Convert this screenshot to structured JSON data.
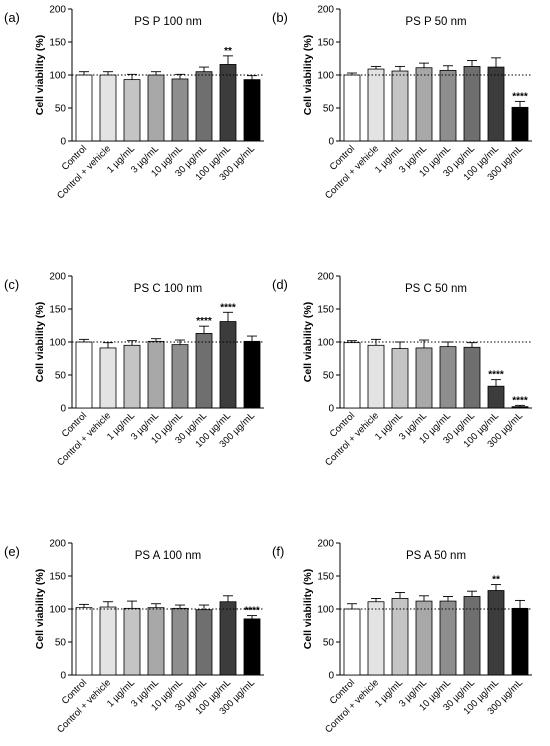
{
  "figure": {
    "categories": [
      "Control",
      "Control + vehicle",
      "1 µg/mL",
      "3 µg/mL",
      "10 µg/mL",
      "30 µg/mL",
      "100 µg/mL",
      "300 µg/mL"
    ],
    "bar_colors": [
      "#ffffff",
      "#e3e3e3",
      "#c4c4c4",
      "#a8a8a8",
      "#8e8e8e",
      "#6f6f6f",
      "#3c3c3c",
      "#000000"
    ],
    "reference_line": 100
  },
  "chart_data": [
    {
      "type": "bar",
      "panel_label": "(a)",
      "title": "PS P 100 nm",
      "ylabel": "Cell viability (%)",
      "ylim": [
        0,
        200
      ],
      "yticks": [
        0,
        50,
        100,
        150,
        200
      ],
      "categories": [
        "Control",
        "Control + vehicle",
        "1 µg/mL",
        "3 µg/mL",
        "10 µg/mL",
        "30 µg/mL",
        "100 µg/mL",
        "300 µg/mL"
      ],
      "values": [
        100,
        100,
        93,
        100,
        94,
        105,
        116,
        93
      ],
      "errors": [
        5,
        5,
        8,
        5,
        7,
        7,
        13,
        6
      ],
      "annotations": [
        "",
        "",
        "",
        "",
        "",
        "",
        "**",
        ""
      ]
    },
    {
      "type": "bar",
      "panel_label": "(b)",
      "title": "PS P 50 nm",
      "ylabel": "Cell viability (%)",
      "ylim": [
        0,
        200
      ],
      "yticks": [
        0,
        50,
        100,
        150,
        200
      ],
      "categories": [
        "Control",
        "Control + vehicle",
        "1 µg/mL",
        "3 µg/mL",
        "10 µg/mL",
        "30 µg/mL",
        "100 µg/mL",
        "300 µg/mL"
      ],
      "values": [
        100,
        109,
        106,
        111,
        107,
        113,
        112,
        51
      ],
      "errors": [
        3,
        4,
        7,
        7,
        7,
        9,
        14,
        9
      ],
      "annotations": [
        "",
        "",
        "",
        "",
        "",
        "",
        "",
        "****"
      ]
    },
    {
      "type": "bar",
      "panel_label": "(c)",
      "title": "PS C 100 nm",
      "ylabel": "Cell viability (%)",
      "ylim": [
        0,
        200
      ],
      "yticks": [
        0,
        50,
        100,
        150,
        200
      ],
      "categories": [
        "Control",
        "Control + vehicle",
        "1 µg/mL",
        "3 µg/mL",
        "10 µg/mL",
        "30 µg/mL",
        "100 µg/mL",
        "300 µg/mL"
      ],
      "values": [
        100,
        91,
        95,
        101,
        96,
        113,
        131,
        101
      ],
      "errors": [
        4,
        8,
        7,
        4,
        7,
        11,
        14,
        8
      ],
      "annotations": [
        "",
        "",
        "",
        "",
        "",
        "****",
        "****",
        ""
      ]
    },
    {
      "type": "bar",
      "panel_label": "(d)",
      "title": "PS C 50 nm",
      "ylabel": "Cell viability (%)",
      "ylim": [
        0,
        200
      ],
      "yticks": [
        0,
        50,
        100,
        150,
        200
      ],
      "categories": [
        "Control",
        "Control + vehicle",
        "1 µg/mL",
        "3 µg/mL",
        "10 µg/mL",
        "30 µg/mL",
        "100 µg/mL",
        "300 µg/mL"
      ],
      "values": [
        99,
        95,
        90,
        91,
        93,
        92,
        33,
        2
      ],
      "errors": [
        3,
        9,
        10,
        12,
        7,
        7,
        10,
        2
      ],
      "annotations": [
        "",
        "",
        "",
        "",
        "",
        "",
        "****",
        "****"
      ]
    },
    {
      "type": "bar",
      "panel_label": "(e)",
      "title": "PS A 100 nm",
      "ylabel": "Cell viability (%)",
      "ylim": [
        0,
        200
      ],
      "yticks": [
        0,
        50,
        100,
        150,
        200
      ],
      "categories": [
        "Control",
        "Control + vehicle",
        "1 µg/mL",
        "3 µg/mL",
        "10 µg/mL",
        "30 µg/mL",
        "100 µg/mL",
        "300 µg/mL"
      ],
      "values": [
        102,
        103,
        101,
        102,
        101,
        99,
        111,
        85
      ],
      "errors": [
        5,
        8,
        11,
        6,
        5,
        7,
        9,
        5
      ],
      "annotations": [
        "",
        "",
        "",
        "",
        "",
        "",
        "",
        "****"
      ]
    },
    {
      "type": "bar",
      "panel_label": "(f)",
      "title": "PS A 50 nm",
      "ylabel": "Cell viability (%)",
      "ylim": [
        0,
        200
      ],
      "yticks": [
        0,
        50,
        100,
        150,
        200
      ],
      "categories": [
        "Control",
        "Control + vehicle",
        "1 µg/mL",
        "3 µg/mL",
        "10 µg/mL",
        "30 µg/mL",
        "100 µg/mL",
        "300 µg/mL"
      ],
      "values": [
        100,
        111,
        116,
        112,
        112,
        119,
        128,
        101
      ],
      "errors": [
        8,
        5,
        9,
        8,
        7,
        8,
        9,
        12
      ],
      "annotations": [
        "",
        "",
        "",
        "",
        "",
        "",
        "**",
        ""
      ]
    }
  ]
}
